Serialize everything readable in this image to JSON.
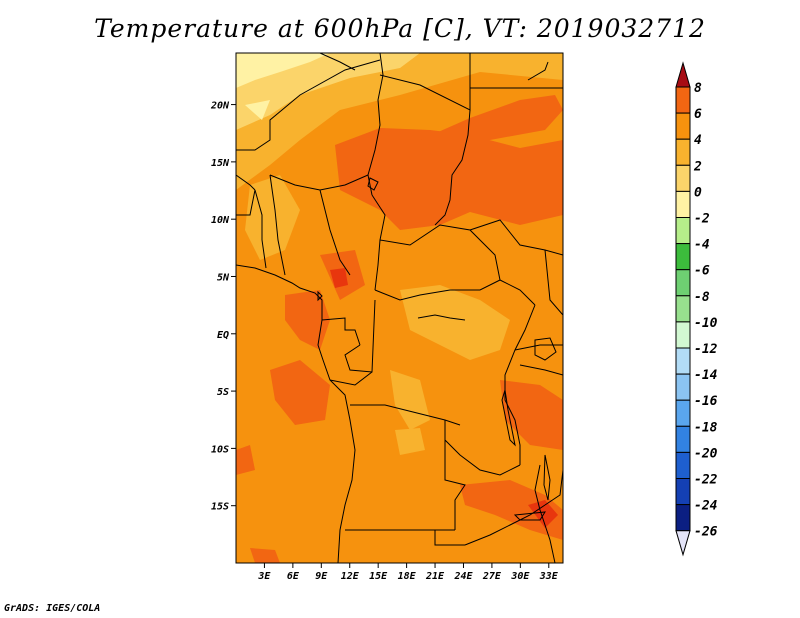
{
  "title": "Temperature at 600hPa [C], VT: 2019032712",
  "credit": "GrADS: IGES/COLA",
  "map": {
    "lon_range": [
      0,
      34.5
    ],
    "lat_range": [
      -20,
      24.5
    ],
    "lon_ticks": [
      "3E",
      "6E",
      "9E",
      "12E",
      "15E",
      "18E",
      "21E",
      "24E",
      "27E",
      "30E",
      "33E"
    ],
    "lat_ticks": [
      "20N",
      "15N",
      "10N",
      "5N",
      "EQ",
      "5S",
      "10S",
      "15S"
    ]
  },
  "colorbar": {
    "labels": [
      "8",
      "6",
      "4",
      "2",
      "0",
      "-2",
      "-4",
      "-6",
      "-8",
      "-10",
      "-12",
      "-14",
      "-16",
      "-18",
      "-20",
      "-22",
      "-24",
      "-26"
    ],
    "colors": [
      "#e8360e",
      "#f26612",
      "#f6920e",
      "#f8b22e",
      "#fbd46a",
      "#fff2a4",
      "#b6ee8a",
      "#3cbc3c",
      "#6ed072",
      "#98e08e",
      "#d2f8d2",
      "#b2dcf6",
      "#8bc4f2",
      "#5aa6ee",
      "#3282e2",
      "#1e5fcf",
      "#1440b4",
      "#0b1f82",
      "#0a0a58"
    ],
    "top_arrow_color": "#a70c14",
    "bottom_arrow_color": "#e4e4f8"
  }
}
